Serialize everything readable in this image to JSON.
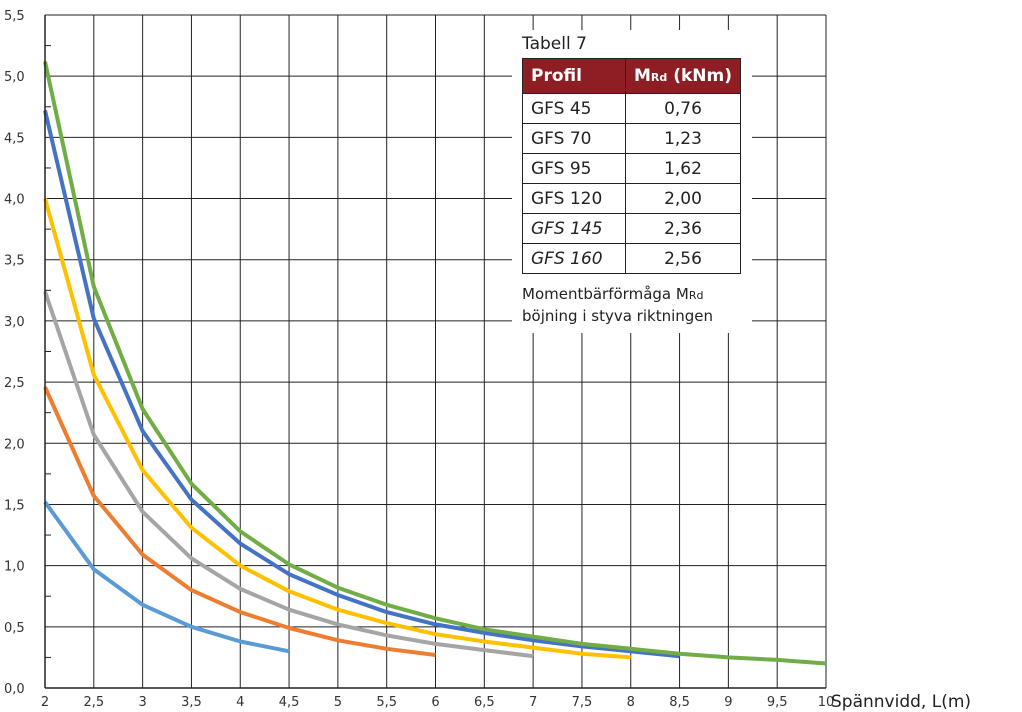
{
  "chart_data": {
    "type": "line",
    "title": "",
    "xlabel": "Spännvidd, L(m)",
    "ylabel": "",
    "xlim": [
      2,
      10
    ],
    "ylim": [
      0,
      5.5
    ],
    "grid": true,
    "x_ticks": [
      "2",
      "2,5",
      "3",
      "3,5",
      "4",
      "4,5",
      "5",
      "5,5",
      "6",
      "6,5",
      "7",
      "7,5",
      "8",
      "8,5",
      "9",
      "9,5",
      "10"
    ],
    "y_ticks": [
      "0,0",
      "0,5",
      "1,0",
      "1,5",
      "2,0",
      "2,5",
      "3,0",
      "3,5",
      "4,0",
      "4,5",
      "5,0",
      "5,5"
    ],
    "series": [
      {
        "color": "#5b9bd5",
        "x": [
          2,
          2.5,
          3,
          3.5,
          4,
          4.5
        ],
        "y": [
          1.52,
          0.97,
          0.68,
          0.5,
          0.38,
          0.3
        ]
      },
      {
        "color": "#ed7d31",
        "x": [
          2,
          2.5,
          3,
          3.5,
          4,
          4.5,
          5,
          5.5,
          6
        ],
        "y": [
          2.46,
          1.57,
          1.09,
          0.8,
          0.62,
          0.49,
          0.39,
          0.32,
          0.27
        ]
      },
      {
        "color": "#a5a5a5",
        "x": [
          2,
          2.5,
          3,
          3.5,
          4,
          4.5,
          5,
          5.5,
          6,
          6.5,
          7
        ],
        "y": [
          3.24,
          2.07,
          1.44,
          1.06,
          0.81,
          0.64,
          0.52,
          0.43,
          0.36,
          0.31,
          0.26
        ]
      },
      {
        "color": "#ffc000",
        "x": [
          2,
          2.5,
          3,
          3.5,
          4,
          4.5,
          5,
          5.5,
          6,
          6.5,
          7,
          7.5,
          8
        ],
        "y": [
          4.0,
          2.56,
          1.78,
          1.31,
          1.0,
          0.79,
          0.64,
          0.53,
          0.44,
          0.38,
          0.33,
          0.28,
          0.25
        ]
      },
      {
        "color": "#4472c4",
        "x": [
          2,
          2.5,
          3,
          3.5,
          4,
          4.5,
          5,
          5.5,
          6,
          6.5,
          7,
          7.5,
          8,
          8.5
        ],
        "y": [
          4.72,
          3.02,
          2.1,
          1.54,
          1.18,
          0.93,
          0.76,
          0.62,
          0.52,
          0.45,
          0.39,
          0.34,
          0.3,
          0.26
        ]
      },
      {
        "color": "#70ad47",
        "x": [
          2,
          2.5,
          3,
          3.5,
          4,
          4.5,
          5,
          5.5,
          6,
          6.5,
          7,
          7.5,
          8,
          8.5,
          9,
          9.5,
          10
        ],
        "y": [
          5.12,
          3.28,
          2.28,
          1.67,
          1.28,
          1.01,
          0.82,
          0.68,
          0.57,
          0.48,
          0.42,
          0.36,
          0.32,
          0.28,
          0.25,
          0.23,
          0.2
        ]
      }
    ]
  },
  "table": {
    "title": "Tabell 7",
    "header_profil": "Profil",
    "header_m_main": "M",
    "header_m_sub": "Rd",
    "header_m_unit": " (kNm)",
    "rows": [
      {
        "profil": "GFS 45",
        "value": "0,76"
      },
      {
        "profil": "GFS 70",
        "value": "1,23"
      },
      {
        "profil": "GFS 95",
        "value": "1,62"
      },
      {
        "profil": "GFS 120",
        "value": "2,00"
      },
      {
        "profil": "GFS 145",
        "value": "2,36"
      },
      {
        "profil": "GFS 160",
        "value": "2,56"
      }
    ],
    "caption_line1_main": "Momentbärförmåga M",
    "caption_line1_sub": "Rd",
    "caption_line2": "böjning i styva riktningen"
  }
}
